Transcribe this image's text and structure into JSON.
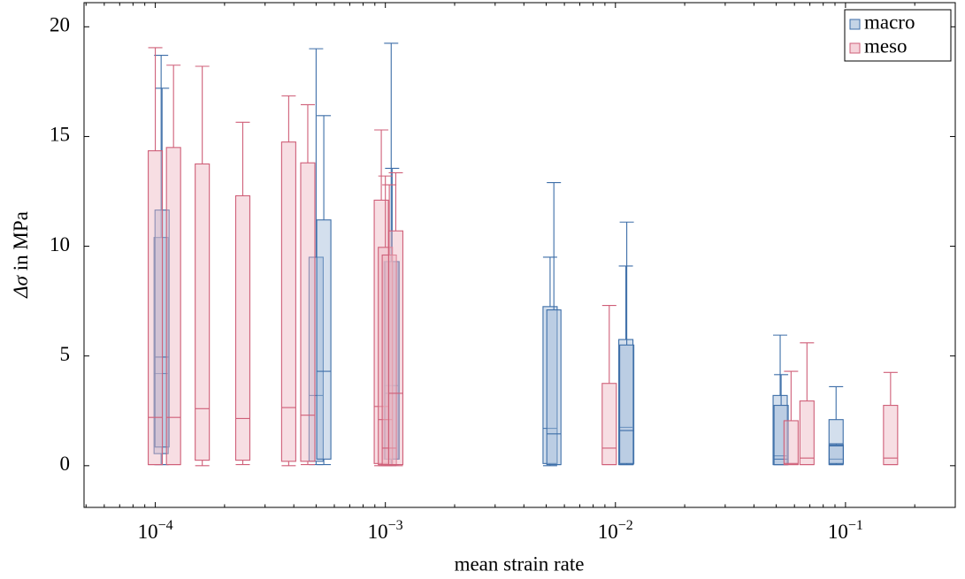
{
  "chart_data": {
    "type": "box",
    "x_label": "mean strain rate",
    "y_label": {
      "symbol": "Δσ",
      "rest": " in MPa"
    },
    "xscale": "log",
    "xlim": [
      4.9e-05,
      0.3
    ],
    "ylim": [
      -1.9,
      21.1
    ],
    "xticks": [
      {
        "value": 0.0001,
        "label": "10",
        "exponent": "−4"
      },
      {
        "value": 0.001,
        "label": "10",
        "exponent": "−3"
      },
      {
        "value": 0.01,
        "label": "10",
        "exponent": "−2"
      },
      {
        "value": 0.1,
        "label": "10",
        "exponent": "−1"
      }
    ],
    "minor_xticks": true,
    "yticks": [
      0,
      5,
      10,
      15,
      20
    ],
    "grid": false,
    "legend": "top-right",
    "series": [
      {
        "name": "macro",
        "color": "#3d6ea8",
        "fill": "#9db7d6",
        "x": [
          0.000106,
          0.000107,
          0.0005,
          0.00054,
          0.00106,
          0.00107,
          0.0052,
          0.0054,
          0.0111,
          0.0112,
          0.052,
          0.0525,
          0.091,
          0.0912
        ],
        "min": [
          0.05,
          0.05,
          0.05,
          0.05,
          0.05,
          0.05,
          0.0,
          0.05,
          0.05,
          0.05,
          0.05,
          0.05,
          0.05,
          0.05
        ],
        "q1": [
          0.55,
          0.85,
          0.2,
          0.3,
          0.3,
          0.3,
          0.1,
          0.05,
          0.05,
          0.1,
          0.05,
          0.05,
          0.05,
          0.1
        ],
        "median": [
          4.2,
          4.95,
          3.2,
          4.3,
          3.65,
          3.3,
          1.7,
          1.45,
          1.75,
          1.6,
          0.45,
          0.3,
          0.3,
          0.9
        ],
        "q3": [
          10.4,
          11.65,
          9.5,
          11.2,
          9.3,
          9.3,
          7.25,
          7.1,
          5.75,
          5.5,
          3.2,
          2.75,
          2.1,
          0.95
        ],
        "max": [
          18.7,
          17.2,
          19.0,
          15.95,
          19.25,
          13.55,
          9.5,
          12.9,
          9.1,
          11.1,
          5.95,
          4.15,
          3.6,
          1.0
        ]
      },
      {
        "name": "meso",
        "color": "#cf5f78",
        "fill": "#eeb5c1",
        "x": [
          0.0001,
          0.00012,
          0.00016,
          0.00024,
          0.00038,
          0.00046,
          0.00096,
          0.001,
          0.00104,
          0.00111,
          0.0094,
          0.058,
          0.068,
          0.157
        ],
        "min": [
          0.05,
          0.05,
          0.0,
          0.05,
          0.0,
          0.05,
          0.0,
          0.0,
          0.0,
          0.0,
          0.05,
          0.05,
          0.05,
          0.05
        ],
        "q1": [
          0.05,
          0.05,
          0.25,
          0.25,
          0.2,
          0.2,
          0.1,
          0.05,
          0.05,
          0.05,
          0.05,
          0.05,
          0.05,
          0.05
        ],
        "median": [
          2.2,
          2.2,
          2.6,
          2.15,
          2.65,
          2.3,
          2.7,
          2.1,
          0.8,
          3.3,
          0.8,
          0.1,
          0.35,
          0.35
        ],
        "q3": [
          14.35,
          14.5,
          13.75,
          12.3,
          14.75,
          13.8,
          12.1,
          9.95,
          9.6,
          10.7,
          3.75,
          2.05,
          2.95,
          2.75
        ],
        "max": [
          19.05,
          18.25,
          18.2,
          15.65,
          16.85,
          16.45,
          15.3,
          13.2,
          12.8,
          13.35,
          7.3,
          4.3,
          5.6,
          4.25
        ]
      }
    ]
  }
}
